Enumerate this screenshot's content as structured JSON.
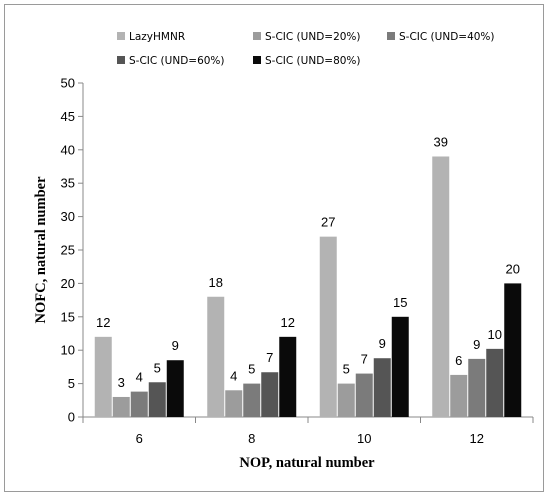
{
  "chart_data": {
    "type": "bar",
    "xlabel": "NOP, natural number",
    "ylabel": "NOFC, natural number",
    "ylim": [
      0,
      50
    ],
    "yticks": [
      0,
      5,
      10,
      15,
      20,
      25,
      30,
      35,
      40,
      45,
      50
    ],
    "categories": [
      "6",
      "8",
      "10",
      "12"
    ],
    "grid": false,
    "legend_position": "top",
    "series": [
      {
        "name": "LazyHMNR",
        "color": "#b3b3b3",
        "values": [
          12,
          18,
          27,
          39
        ],
        "labels": [
          "12",
          "18",
          "27",
          "39"
        ]
      },
      {
        "name": "S-CIC (UND=20%)",
        "color": "#9c9c9c",
        "values": [
          3,
          4,
          5,
          6.3
        ],
        "labels": [
          "3",
          "4",
          "5",
          "6"
        ]
      },
      {
        "name": "S-CIC (UND=40%)",
        "color": "#7b7b7b",
        "values": [
          3.8,
          5,
          6.5,
          8.7
        ],
        "labels": [
          "4",
          "5",
          "7",
          "9"
        ]
      },
      {
        "name": "S-CIC (UND=60%)",
        "color": "#555555",
        "values": [
          5.2,
          6.7,
          8.8,
          10.2
        ],
        "labels": [
          "5",
          "7",
          "9",
          "10"
        ]
      },
      {
        "name": "S-CIC (UND=80%)",
        "color": "#0a0a0a",
        "values": [
          8.5,
          12,
          15,
          20
        ],
        "labels": [
          "9",
          "12",
          "15",
          "20"
        ]
      }
    ]
  }
}
